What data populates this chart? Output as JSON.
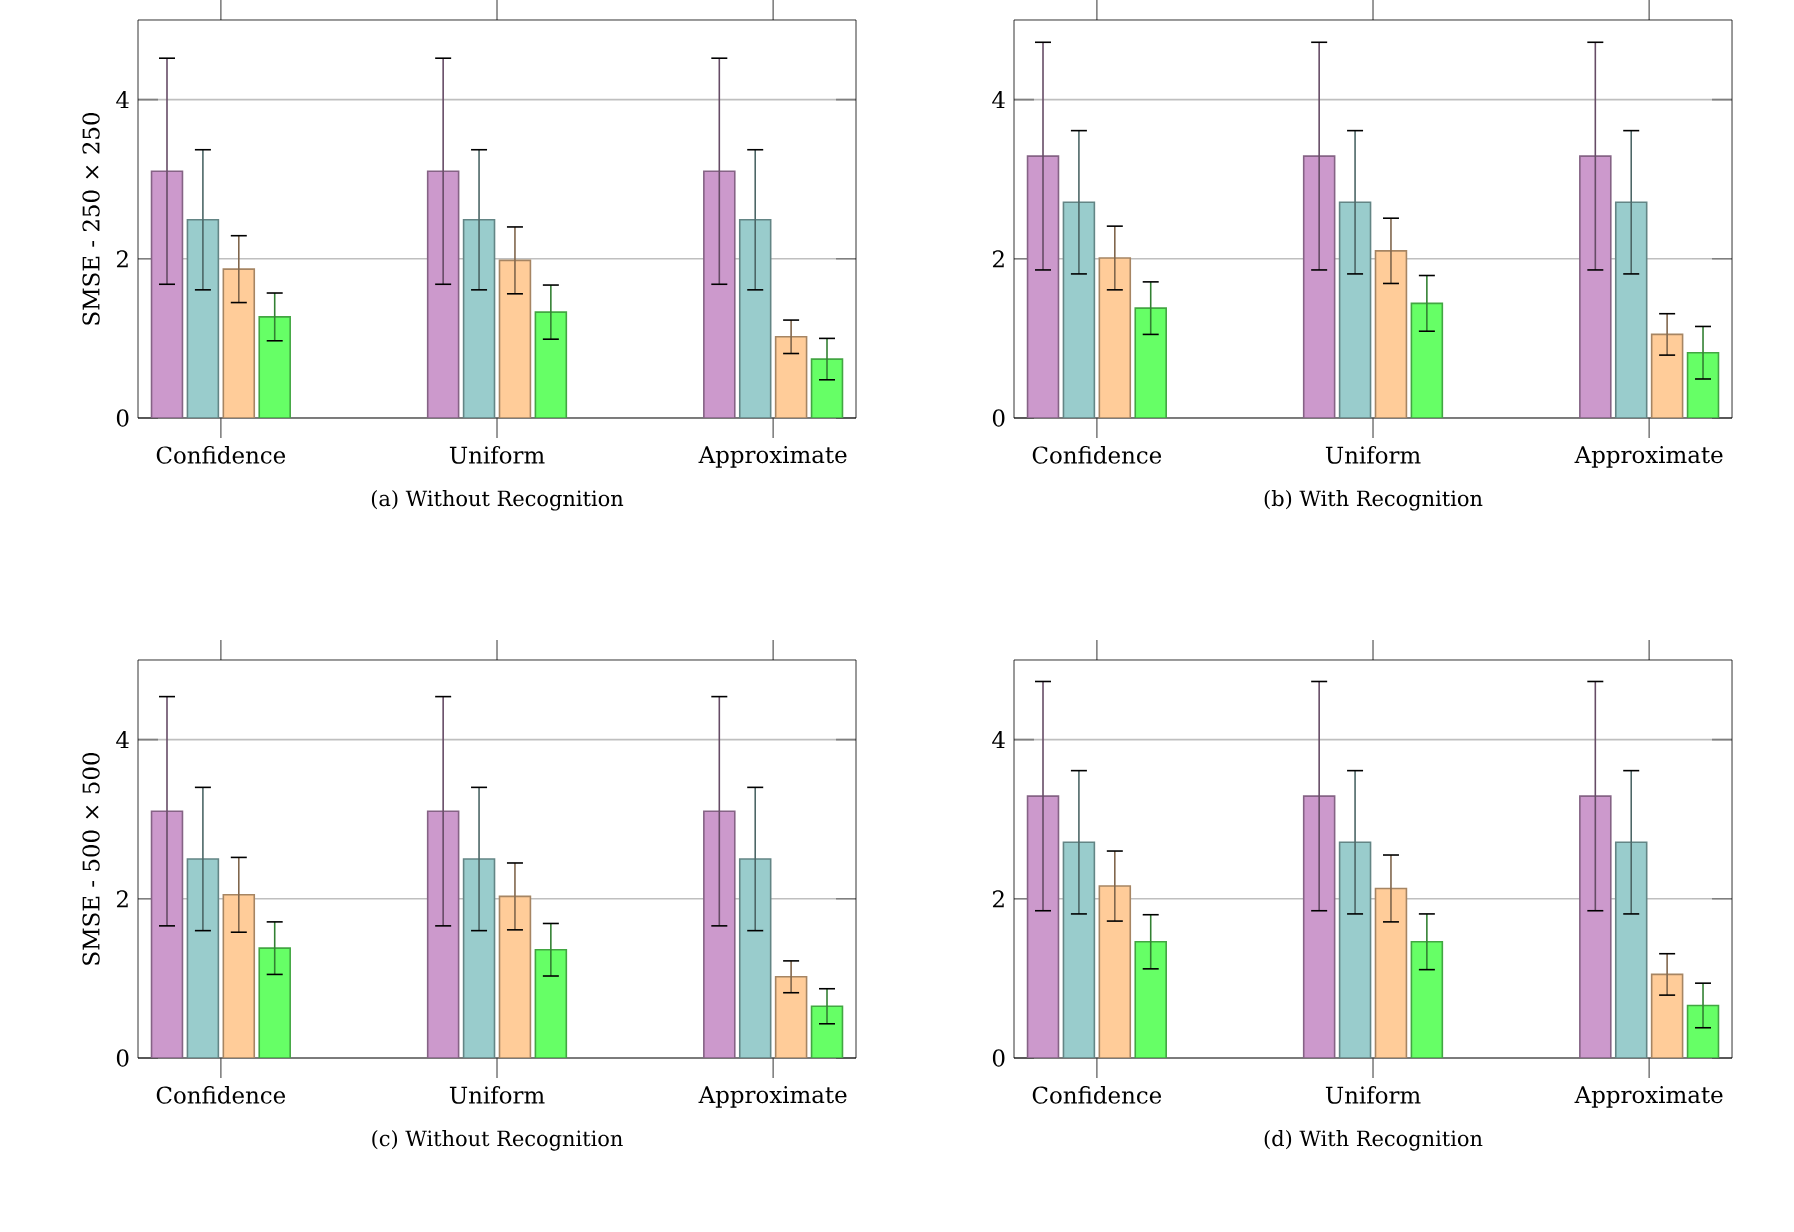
{
  "chart_data": [
    {
      "type": "bar",
      "title": "(a) Without Recognition",
      "ylabel": "SMSE - 250 × 250",
      "categories": [
        "Confidence",
        "Uniform",
        "Approximate"
      ],
      "ylim": [
        0,
        5
      ],
      "yticks": [
        0,
        2,
        4
      ],
      "grid": "y",
      "series": [
        {
          "color": "#cc99cc",
          "values": [
            3.1,
            3.1,
            3.1
          ],
          "errors": [
            1.42,
            1.42,
            1.42
          ]
        },
        {
          "color": "#99cccc",
          "values": [
            2.49,
            2.49,
            2.49
          ],
          "errors": [
            0.88,
            0.88,
            0.88
          ]
        },
        {
          "color": "#ffcc99",
          "values": [
            1.87,
            1.98,
            1.02
          ],
          "errors": [
            0.42,
            0.42,
            0.21
          ]
        },
        {
          "color": "#66ff66",
          "values": [
            1.27,
            1.33,
            0.74
          ],
          "errors": [
            0.3,
            0.34,
            0.26
          ]
        }
      ]
    },
    {
      "type": "bar",
      "title": "(b) With Recognition",
      "categories": [
        "Confidence",
        "Uniform",
        "Approximate"
      ],
      "ylim": [
        0,
        5
      ],
      "yticks": [
        0,
        2,
        4
      ],
      "grid": "y",
      "series": [
        {
          "color": "#cc99cc",
          "values": [
            3.29,
            3.29,
            3.29
          ],
          "errors": [
            1.43,
            1.43,
            1.43
          ]
        },
        {
          "color": "#99cccc",
          "values": [
            2.71,
            2.71,
            2.71
          ],
          "errors": [
            0.9,
            0.9,
            0.9
          ]
        },
        {
          "color": "#ffcc99",
          "values": [
            2.01,
            2.1,
            1.05
          ],
          "errors": [
            0.4,
            0.41,
            0.26
          ]
        },
        {
          "color": "#66ff66",
          "values": [
            1.38,
            1.44,
            0.82
          ],
          "errors": [
            0.33,
            0.35,
            0.33
          ]
        }
      ]
    },
    {
      "type": "bar",
      "title": "(c) Without Recognition",
      "ylabel": "SMSE - 500 × 500",
      "categories": [
        "Confidence",
        "Uniform",
        "Approximate"
      ],
      "ylim": [
        0,
        5
      ],
      "yticks": [
        0,
        2,
        4
      ],
      "grid": "y",
      "series": [
        {
          "color": "#cc99cc",
          "values": [
            3.1,
            3.1,
            3.1
          ],
          "errors": [
            1.44,
            1.44,
            1.44
          ]
        },
        {
          "color": "#99cccc",
          "values": [
            2.5,
            2.5,
            2.5
          ],
          "errors": [
            0.9,
            0.9,
            0.9
          ]
        },
        {
          "color": "#ffcc99",
          "values": [
            2.05,
            2.03,
            1.02
          ],
          "errors": [
            0.47,
            0.42,
            0.2
          ]
        },
        {
          "color": "#66ff66",
          "values": [
            1.38,
            1.36,
            0.65
          ],
          "errors": [
            0.33,
            0.33,
            0.22
          ]
        }
      ]
    },
    {
      "type": "bar",
      "title": "(d) With Recognition",
      "categories": [
        "Confidence",
        "Uniform",
        "Approximate"
      ],
      "ylim": [
        0,
        5
      ],
      "yticks": [
        0,
        2,
        4
      ],
      "grid": "y",
      "series": [
        {
          "color": "#cc99cc",
          "values": [
            3.29,
            3.29,
            3.29
          ],
          "errors": [
            1.44,
            1.44,
            1.44
          ]
        },
        {
          "color": "#99cccc",
          "values": [
            2.71,
            2.71,
            2.71
          ],
          "errors": [
            0.9,
            0.9,
            0.9
          ]
        },
        {
          "color": "#ffcc99",
          "values": [
            2.16,
            2.13,
            1.05
          ],
          "errors": [
            0.44,
            0.42,
            0.26
          ]
        },
        {
          "color": "#66ff66",
          "values": [
            1.46,
            1.46,
            0.66
          ],
          "errors": [
            0.34,
            0.35,
            0.28
          ]
        }
      ]
    }
  ]
}
